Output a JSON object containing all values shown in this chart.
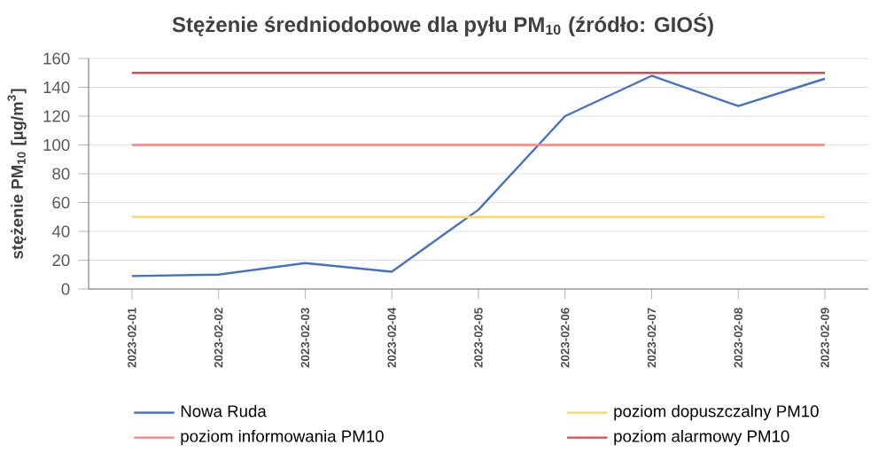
{
  "chart_data": {
    "type": "line",
    "title": "Stężenie średniodobowe dla pyłu PM$_{10}$ (źródło: GIOŚ)",
    "ylabel": "stężenie PM$_{10}$ [µg/m$^{3}$]",
    "categories": [
      "2023-02-01",
      "2023-02-02",
      "2023-02-03",
      "2023-02-04",
      "2023-02-05",
      "2023-02-06",
      "2023-02-07",
      "2023-02-08",
      "2023-02-09"
    ],
    "series": [
      {
        "name": "Nowa Ruda",
        "color": "#4472c4",
        "values": [
          9,
          10,
          18,
          12,
          55,
          120,
          148,
          127,
          146
        ]
      },
      {
        "name": "poziom dopuszczalny PM10",
        "color": "#ffd966",
        "values": [
          50,
          50,
          50,
          50,
          50,
          50,
          50,
          50,
          50
        ]
      },
      {
        "name": "poziom informowania PM10",
        "color": "#ff8080",
        "values": [
          100,
          100,
          100,
          100,
          100,
          100,
          100,
          100,
          100
        ]
      },
      {
        "name": "poziom alarmowy PM10",
        "color": "#e04848",
        "values": [
          150,
          150,
          150,
          150,
          150,
          150,
          150,
          150,
          150
        ]
      }
    ],
    "ylim": [
      0,
      160
    ],
    "yticks": [
      0,
      20,
      40,
      60,
      80,
      100,
      120,
      140,
      160
    ],
    "grid": "y",
    "legend": "bottom"
  }
}
